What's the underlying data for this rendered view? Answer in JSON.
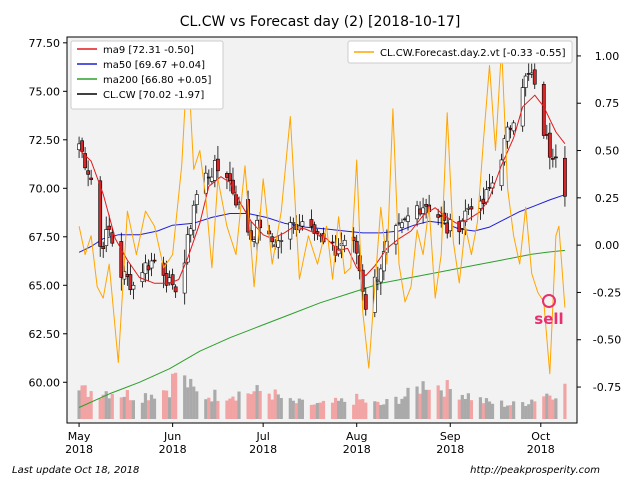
{
  "chart_data": {
    "type": "candlestick",
    "title": "CL.CW vs Forecast day (2)  [2018-10-17]",
    "y_left_ticks": [
      "60.00",
      "62.50",
      "65.00",
      "67.50",
      "70.00",
      "72.50",
      "75.00",
      "77.50"
    ],
    "y_left_values": [
      60,
      62.5,
      65,
      67.5,
      70,
      72.5,
      75,
      77.5
    ],
    "y_left_range": [
      57.9,
      77.8
    ],
    "y_right_ticks": [
      "-0.75",
      "-0.50",
      "-0.25",
      "0.00",
      "0.25",
      "0.50",
      "0.75",
      "1.00"
    ],
    "y_right_values": [
      -0.75,
      -0.5,
      -0.25,
      0,
      0.25,
      0.5,
      0.75,
      1.0
    ],
    "y_right_range": [
      -0.94,
      1.1
    ],
    "x_ticks": [
      {
        "line1": "May",
        "line2": "2018",
        "day": 0
      },
      {
        "line1": "Jun",
        "line2": "2018",
        "day": 31
      },
      {
        "line1": "Jul",
        "line2": "2018",
        "day": 61
      },
      {
        "line1": "Aug",
        "line2": "2018",
        "day": 92
      },
      {
        "line1": "Sep",
        "line2": "2018",
        "day": 123
      },
      {
        "line1": "Oct",
        "line2": "2018",
        "day": 153
      }
    ],
    "x_range": [
      -4,
      165
    ],
    "legend_main": [
      {
        "label": "ma9 [72.31 -0.50]",
        "color": "#e31a1c"
      },
      {
        "label": "ma50 [69.67 +0.04]",
        "color": "#1f1fd6"
      },
      {
        "label": "ma200 [66.80 +0.05]",
        "color": "#2ca02c"
      },
      {
        "label": "CL.CW [70.02 -1.97]",
        "color": "#000000"
      }
    ],
    "legend_forecast": {
      "label": "CL.CW.Forecast.day.2.vt [-0.33 -0.55]",
      "color": "#ffa500"
    },
    "annotation": {
      "label": "sell",
      "color": "#e8306e"
    },
    "series": {
      "close_points": [
        [
          0,
          72.3
        ],
        [
          4,
          70.5
        ],
        [
          7,
          67.0
        ],
        [
          10,
          67.8
        ],
        [
          14,
          65.6
        ],
        [
          18,
          65.0
        ],
        [
          21,
          65.9
        ],
        [
          25,
          66.3
        ],
        [
          28,
          65.8
        ],
        [
          31,
          64.6
        ],
        [
          35,
          66.2
        ],
        [
          38,
          69.2
        ],
        [
          41,
          70.5
        ],
        [
          45,
          71.0
        ],
        [
          49,
          70.8
        ],
        [
          53,
          69.0
        ],
        [
          57,
          67.5
        ],
        [
          60,
          68.2
        ],
        [
          63,
          67.3
        ],
        [
          66,
          67.2
        ],
        [
          70,
          68.0
        ],
        [
          73,
          68.3
        ],
        [
          77,
          68.4
        ],
        [
          81,
          67.1
        ],
        [
          85,
          66.7
        ],
        [
          89,
          67.6
        ],
        [
          92,
          66.7
        ],
        [
          95,
          64.0
        ],
        [
          99,
          65.6
        ],
        [
          103,
          67.4
        ],
        [
          107,
          67.9
        ],
        [
          111,
          69.0
        ],
        [
          115,
          69.2
        ],
        [
          119,
          68.6
        ],
        [
          122,
          67.9
        ],
        [
          126,
          68.2
        ],
        [
          130,
          69.3
        ],
        [
          133,
          68.9
        ],
        [
          137,
          70.3
        ],
        [
          141,
          72.3
        ],
        [
          144,
          73.8
        ],
        [
          147,
          75.5
        ],
        [
          150,
          75.8
        ],
        [
          153,
          73.5
        ],
        [
          156,
          71.9
        ],
        [
          159,
          72.0
        ],
        [
          161,
          70.02
        ]
      ],
      "ma9": [
        [
          0,
          72.0
        ],
        [
          4,
          71.4
        ],
        [
          8,
          69.7
        ],
        [
          12,
          67.4
        ],
        [
          16,
          66.3
        ],
        [
          20,
          65.4
        ],
        [
          25,
          65.1
        ],
        [
          30,
          65.1
        ],
        [
          33,
          65.3
        ],
        [
          36,
          66.4
        ],
        [
          40,
          68.2
        ],
        [
          43,
          70.1
        ],
        [
          47,
          70.6
        ],
        [
          50,
          70.3
        ],
        [
          54,
          69.1
        ],
        [
          57,
          68.3
        ],
        [
          61,
          67.6
        ],
        [
          64,
          67.4
        ],
        [
          68,
          67.7
        ],
        [
          71,
          68.0
        ],
        [
          75,
          67.9
        ],
        [
          78,
          67.7
        ],
        [
          82,
          67.4
        ],
        [
          86,
          66.8
        ],
        [
          89,
          66.9
        ],
        [
          92,
          65.9
        ],
        [
          95,
          65.5
        ],
        [
          98,
          66.0
        ],
        [
          102,
          66.9
        ],
        [
          106,
          67.4
        ],
        [
          110,
          67.8
        ],
        [
          114,
          68.6
        ],
        [
          118,
          69.0
        ],
        [
          121,
          68.6
        ],
        [
          125,
          68.2
        ],
        [
          129,
          68.4
        ],
        [
          133,
          68.8
        ],
        [
          136,
          69.5
        ],
        [
          140,
          71.2
        ],
        [
          144,
          72.6
        ],
        [
          147,
          74.2
        ],
        [
          151,
          74.8
        ],
        [
          154,
          74.2
        ],
        [
          158,
          72.9
        ],
        [
          161,
          72.3
        ]
      ],
      "ma50": [
        [
          0,
          66.7
        ],
        [
          4,
          67.0
        ],
        [
          8,
          67.4
        ],
        [
          13,
          67.6
        ],
        [
          20,
          67.6
        ],
        [
          26,
          67.8
        ],
        [
          31,
          68.1
        ],
        [
          38,
          68.2
        ],
        [
          44,
          68.5
        ],
        [
          50,
          68.7
        ],
        [
          56,
          68.7
        ],
        [
          62,
          68.5
        ],
        [
          68,
          68.2
        ],
        [
          75,
          68.0
        ],
        [
          82,
          67.9
        ],
        [
          88,
          67.8
        ],
        [
          94,
          67.7
        ],
        [
          100,
          67.7
        ],
        [
          106,
          67.8
        ],
        [
          111,
          68.1
        ],
        [
          116,
          68.3
        ],
        [
          121,
          68.2
        ],
        [
          126,
          67.9
        ],
        [
          131,
          67.8
        ],
        [
          136,
          68.0
        ],
        [
          141,
          68.4
        ],
        [
          146,
          68.8
        ],
        [
          151,
          69.1
        ],
        [
          156,
          69.4
        ],
        [
          161,
          69.67
        ]
      ],
      "ma200": [
        [
          0,
          58.7
        ],
        [
          10,
          59.4
        ],
        [
          20,
          60.0
        ],
        [
          30,
          60.7
        ],
        [
          40,
          61.6
        ],
        [
          50,
          62.3
        ],
        [
          60,
          62.9
        ],
        [
          70,
          63.5
        ],
        [
          80,
          64.1
        ],
        [
          90,
          64.6
        ],
        [
          100,
          65.1
        ],
        [
          110,
          65.4
        ],
        [
          120,
          65.7
        ],
        [
          130,
          66.0
        ],
        [
          140,
          66.3
        ],
        [
          150,
          66.6
        ],
        [
          155,
          66.7
        ],
        [
          161,
          66.8
        ]
      ],
      "forecast": [
        [
          0,
          0.1
        ],
        [
          2,
          -0.05
        ],
        [
          4,
          0.05
        ],
        [
          6,
          -0.22
        ],
        [
          8,
          -0.28
        ],
        [
          10,
          -0.1
        ],
        [
          13,
          -0.62
        ],
        [
          16,
          0.18
        ],
        [
          19,
          -0.05
        ],
        [
          22,
          0.18
        ],
        [
          25,
          0.1
        ],
        [
          28,
          -0.12
        ],
        [
          31,
          -0.05
        ],
        [
          34,
          0.42
        ],
        [
          36,
          1.0
        ],
        [
          38,
          0.4
        ],
        [
          40,
          0.5
        ],
        [
          42,
          0.25
        ],
        [
          44,
          -0.12
        ],
        [
          46,
          0.35
        ],
        [
          49,
          0.1
        ],
        [
          52,
          -0.05
        ],
        [
          55,
          0.42
        ],
        [
          58,
          -0.22
        ],
        [
          61,
          0.35
        ],
        [
          64,
          -0.1
        ],
        [
          67,
          0.18
        ],
        [
          70,
          0.68
        ],
        [
          73,
          -0.18
        ],
        [
          76,
          0.05
        ],
        [
          79,
          -0.1
        ],
        [
          82,
          0.1
        ],
        [
          84,
          -0.18
        ],
        [
          86,
          0.15
        ],
        [
          88,
          -0.15
        ],
        [
          90,
          -0.12
        ],
        [
          92,
          0.45
        ],
        [
          94,
          -0.35
        ],
        [
          96,
          -0.65
        ],
        [
          98,
          -0.22
        ],
        [
          100,
          0.2
        ],
        [
          102,
          -0.1
        ],
        [
          104,
          0.72
        ],
        [
          106,
          -0.1
        ],
        [
          108,
          -0.3
        ],
        [
          110,
          -0.22
        ],
        [
          112,
          0.08
        ],
        [
          114,
          -0.05
        ],
        [
          116,
          0.2
        ],
        [
          118,
          -0.28
        ],
        [
          120,
          -0.05
        ],
        [
          122,
          0.7
        ],
        [
          124,
          0.02
        ],
        [
          126,
          -0.2
        ],
        [
          128,
          0.1
        ],
        [
          130,
          -0.05
        ],
        [
          132,
          0.12
        ],
        [
          134,
          0.55
        ],
        [
          136,
          0.95
        ],
        [
          138,
          0.5
        ],
        [
          140,
          1.05
        ],
        [
          142,
          0.3
        ],
        [
          144,
          0.05
        ],
        [
          146,
          -0.1
        ],
        [
          148,
          0.2
        ],
        [
          150,
          -0.15
        ],
        [
          152,
          -0.25
        ],
        [
          154,
          -0.3
        ],
        [
          156,
          -0.68
        ],
        [
          158,
          0.05
        ],
        [
          159,
          0.1
        ],
        [
          161,
          -0.33
        ]
      ],
      "volume_span": [
        [
          0,
          1.0
        ],
        [
          10,
          1.0
        ],
        [
          20,
          0.8
        ],
        [
          30,
          1.1
        ],
        [
          32,
          1.7
        ],
        [
          40,
          0.8
        ],
        [
          50,
          0.9
        ],
        [
          62,
          1.0
        ],
        [
          70,
          0.6
        ],
        [
          80,
          0.5
        ],
        [
          92,
          0.7
        ],
        [
          100,
          0.5
        ],
        [
          110,
          0.9
        ],
        [
          115,
          1.3
        ],
        [
          125,
          1.0
        ],
        [
          135,
          0.6
        ],
        [
          145,
          0.5
        ],
        [
          155,
          0.9
        ],
        [
          161,
          1.1
        ]
      ]
    }
  }
}
